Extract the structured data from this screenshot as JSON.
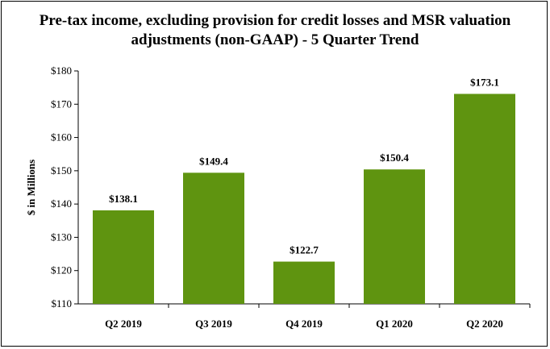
{
  "chart_data": {
    "type": "bar",
    "title": "Pre-tax income, excluding provision for credit losses and MSR valuation",
    "subtitle": "adjustments (non-GAAP) - 5 Quarter Trend",
    "xlabel": "",
    "ylabel": "$ in Millions",
    "categories": [
      "Q2 2019",
      "Q3 2019",
      "Q4 2019",
      "Q1 2020",
      "Q2 2020"
    ],
    "values": [
      138.1,
      149.4,
      122.7,
      150.4,
      173.1
    ],
    "value_labels": [
      "$138.1",
      "$149.4",
      "$122.7",
      "$150.4",
      "$173.1"
    ],
    "ylim": [
      110,
      180
    ],
    "yticks": [
      110,
      120,
      130,
      140,
      150,
      160,
      170,
      180
    ],
    "ytick_labels": [
      "$110",
      "$120",
      "$130",
      "$140",
      "$150",
      "$160",
      "$170",
      "$180"
    ],
    "grid": false,
    "legend": "none",
    "bar_color": "#5f9410"
  }
}
